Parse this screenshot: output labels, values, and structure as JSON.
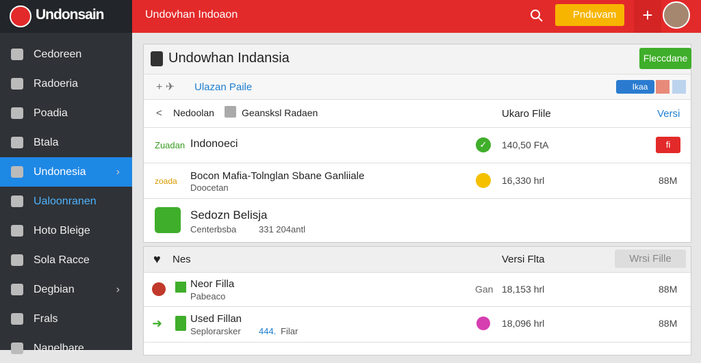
{
  "brand": "Undonsain",
  "topbar": {
    "title": "Undovhan Indoaon",
    "button": "Pnduvam"
  },
  "sidebar": [
    "Cedoreen",
    "Radoeria",
    "Poadia",
    "Btala",
    "Undonesia",
    "Ualoonranen",
    "Hoto Bleige",
    "Sola Racce",
    "Degbian",
    "Frals",
    "Nanelbare"
  ],
  "card1": {
    "title": "Undowhan Indansia",
    "button": "Fleccdane",
    "filter": "Ulazan Paile",
    "filter_button": "Ikaa",
    "columns": [
      "Nedoolan",
      "Geansksl Radaen",
      "Ukaro Flile",
      "Versi"
    ],
    "rows": [
      {
        "tag": "Zuadan",
        "name": "Indonoeci",
        "size": "140,50 FtA",
        "badge": "fi"
      },
      {
        "tag": "zoada",
        "name": "Bocon Mafia-Tolnglan Sbane Ganliiale",
        "sub": "Doocetan",
        "size": "16,330 hrl",
        "version": "88M"
      },
      {
        "name": "Sedozn Belisja",
        "sub": "Centerbsba",
        "meta": "331 204antl"
      }
    ]
  },
  "card2": {
    "title": "Nes",
    "column": "Versi Flta",
    "button": "Wrsi Fille",
    "rows": [
      {
        "name": "Neor Filla",
        "sub": "Pabeaco",
        "status": "Gan",
        "size": "18,153 hrl",
        "version": "88M"
      },
      {
        "name": "Used Fillan",
        "sub": "Seplorarsker",
        "link": "444.",
        "extra": "Filar",
        "size": "18,096 hrl",
        "version": "88M"
      }
    ]
  }
}
